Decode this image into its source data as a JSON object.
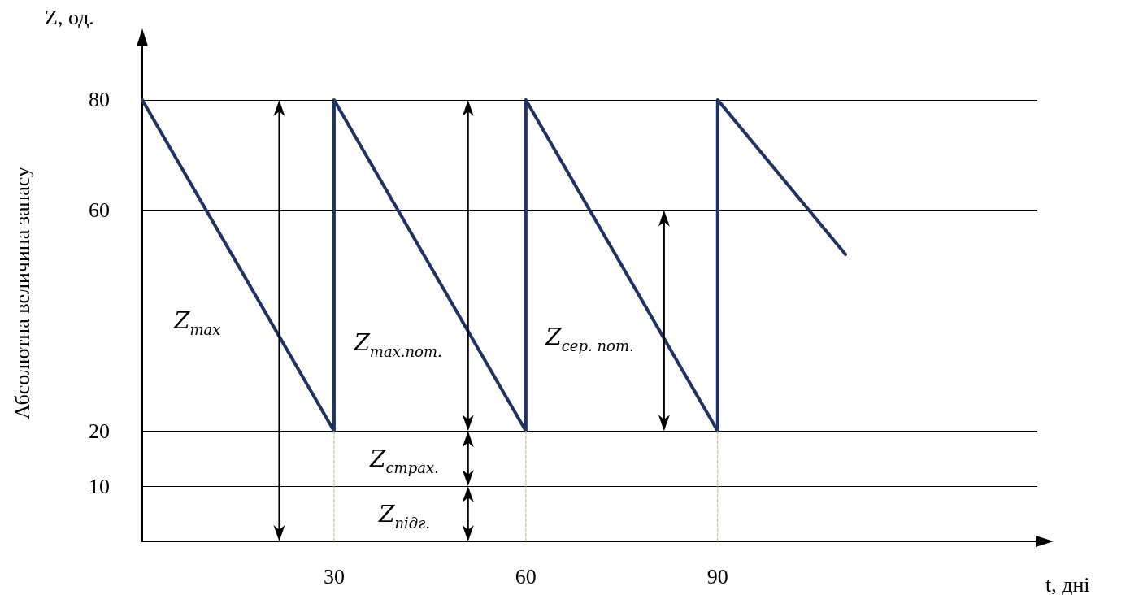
{
  "chart_data": {
    "type": "line",
    "ylabel": "Абсолютна величина запасу",
    "xlabel": "t, дні",
    "xlim": [
      0,
      140
    ],
    "xticks": [
      30,
      60,
      90
    ],
    "ylim": [
      0,
      90
    ],
    "yticks": [
      10,
      20,
      60,
      80
    ],
    "grid": "y",
    "marker": "none",
    "series": [
      {
        "color": "#1f3264",
        "x": [
          0,
          30,
          30,
          60,
          60,
          90,
          90,
          110
        ],
        "values": [
          80,
          20,
          80,
          20,
          80,
          20,
          80,
          52
        ]
      },
      {
        "color": "#c9b87a",
        "line_style": "dashed",
        "x": [
          30,
          30
        ],
        "values": [
          0,
          20
        ]
      },
      {
        "color": "#c9b87a",
        "line_style": "dashed",
        "x": [
          60,
          60
        ],
        "values": [
          0,
          20
        ]
      },
      {
        "color": "#c9b87a",
        "line_style": "dashed",
        "x": [
          90,
          90
        ],
        "values": [
          0,
          20
        ]
      }
    ],
    "annotations": [
      "Z, од.",
      "Z$_{max}$",
      "Z$_{max.пот.}$",
      "Z$_{сер. пот.}$",
      "Z$_{страх.}$",
      "Z$_{підг.}$"
    ]
  }
}
